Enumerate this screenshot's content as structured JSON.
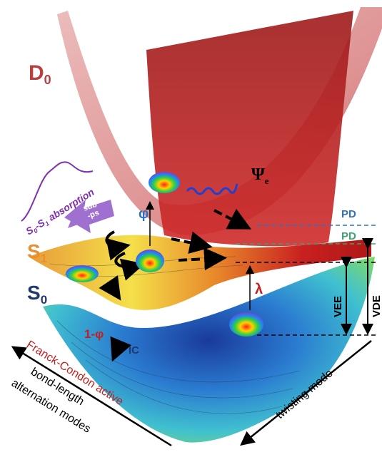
{
  "states": {
    "d0": {
      "symbol": "D",
      "subscript": "0"
    },
    "s1": {
      "symbol": "S",
      "subscript": "1"
    },
    "s0": {
      "symbol": "S",
      "subscript": "0"
    }
  },
  "absorption": {
    "parts": [
      "S",
      "0",
      "-S",
      "1",
      " absorption"
    ]
  },
  "arrow_label": {
    "line1": "sub",
    "line2": "-ps"
  },
  "psi": {
    "symbol": "Ψ",
    "subscript": "e"
  },
  "phi": "φ",
  "pd_upper": "PD",
  "pd_lower": "PD",
  "lambda": "λ",
  "vee": "VEE",
  "vde": "VDE",
  "one_minus_phi": "1-φ",
  "ic": "IC",
  "axes": {
    "franck_condon": "Franck-Condon active",
    "bla_line1": "bond-length",
    "bla_line2": "alternation modes",
    "twisting": "twisting mode"
  }
}
